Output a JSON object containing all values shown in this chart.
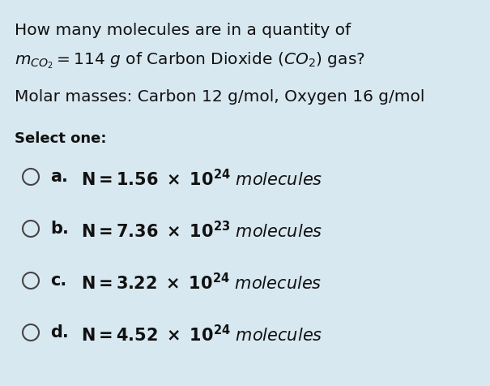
{
  "background_color": "#d8e8f0",
  "text_color": "#111111",
  "line1": "How many molecules are in a quantity of",
  "line3": "Molar masses: Carbon 12 g/mol, Oxygen 16 g/mol",
  "select_one": "Select one:",
  "options": [
    {
      "letter": "a.",
      "coeff": "1.56",
      "exp": "24"
    },
    {
      "letter": "b.",
      "coeff": "7.36",
      "exp": "23"
    },
    {
      "letter": "c.",
      "coeff": "3.22",
      "exp": "24"
    },
    {
      "letter": "d.",
      "coeff": "4.52",
      "exp": "24"
    }
  ],
  "fontsize_main": 14.5,
  "fontsize_options": 15.0,
  "fontsize_select": 13.0,
  "fig_width": 6.05,
  "fig_height": 4.77,
  "dpi": 100
}
